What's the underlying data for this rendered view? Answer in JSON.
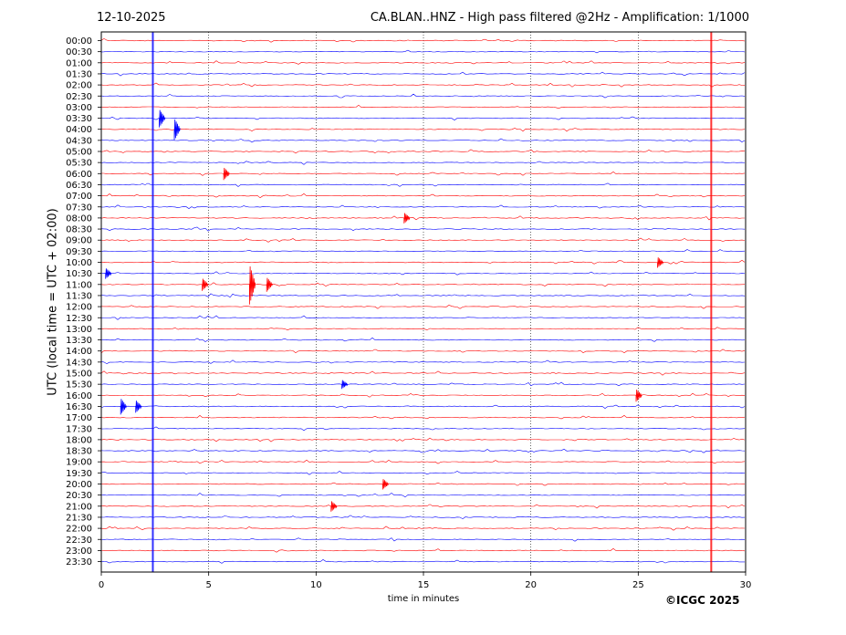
{
  "header": {
    "date": "12-10-2025",
    "title": "CA.BLAN..HNZ - High pass filtered @2Hz - Amplification: 1/1000"
  },
  "footer": {
    "copyright": "©ICGC 2025"
  },
  "chart_data": {
    "type": "line",
    "subtype": "helicorder",
    "xlabel": "time in minutes",
    "ylabel": "UTC (local time = UTC + 02:00)",
    "xlim": [
      0,
      30
    ],
    "x_ticks": [
      0,
      5,
      10,
      15,
      20,
      25,
      30
    ],
    "x_tick_labels": [
      "0",
      "5",
      "10",
      "15",
      "20",
      "25",
      "30"
    ],
    "grid": "vertical dotted at 5-minute ticks",
    "trace_colors": [
      "#ff0000",
      "#0000ff"
    ],
    "row_labels": [
      "00:00",
      "00:30",
      "01:00",
      "01:30",
      "02:00",
      "02:30",
      "03:00",
      "03:30",
      "04:00",
      "04:30",
      "05:00",
      "05:30",
      "06:00",
      "06:30",
      "07:00",
      "07:30",
      "08:00",
      "08:30",
      "09:00",
      "09:30",
      "10:00",
      "10:30",
      "11:00",
      "11:30",
      "12:00",
      "12:30",
      "13:00",
      "13:30",
      "14:00",
      "14:30",
      "15:00",
      "15:30",
      "16:00",
      "16:30",
      "17:00",
      "17:30",
      "18:00",
      "18:30",
      "19:00",
      "19:30",
      "20:00",
      "20:30",
      "21:00",
      "21:30",
      "22:00",
      "22:30",
      "23:00",
      "23:30"
    ],
    "persistent_spikes": [
      {
        "minute": 2.4,
        "color": "#0000ff"
      },
      {
        "minute": 28.4,
        "color": "#ff0000"
      }
    ],
    "events": [
      {
        "row": "03:30",
        "minute": 2.7,
        "amp": 10,
        "color": "#0000ff"
      },
      {
        "row": "04:00",
        "minute": 3.4,
        "amp": 12,
        "color": "#0000ff"
      },
      {
        "row": "10:00",
        "minute": 25.9,
        "amp": 6,
        "color": "#ff0000"
      },
      {
        "row": "10:30",
        "minute": 0.2,
        "amp": 6,
        "color": "#0000ff"
      },
      {
        "row": "11:00",
        "minute": 4.7,
        "amp": 7,
        "color": "#ff0000"
      },
      {
        "row": "11:00",
        "minute": 6.9,
        "amp": 22,
        "color": "#ff0000"
      },
      {
        "row": "11:00",
        "minute": 7.7,
        "amp": 8,
        "color": "#ff0000"
      },
      {
        "row": "16:00",
        "minute": 24.9,
        "amp": 7,
        "color": "#ff0000"
      },
      {
        "row": "16:30",
        "minute": 0.9,
        "amp": 9,
        "color": "#0000ff"
      },
      {
        "row": "16:30",
        "minute": 1.6,
        "amp": 7,
        "color": "#0000ff"
      },
      {
        "row": "20:00",
        "minute": 13.1,
        "amp": 6,
        "color": "#ff0000"
      },
      {
        "row": "21:00",
        "minute": 10.7,
        "amp": 6,
        "color": "#ff0000"
      },
      {
        "row": "06:00",
        "minute": 5.7,
        "amp": 7,
        "color": "#ff0000"
      },
      {
        "row": "08:00",
        "minute": 14.1,
        "amp": 6,
        "color": "#ff0000"
      },
      {
        "row": "15:30",
        "minute": 11.2,
        "amp": 5,
        "color": "#0000ff"
      }
    ]
  }
}
